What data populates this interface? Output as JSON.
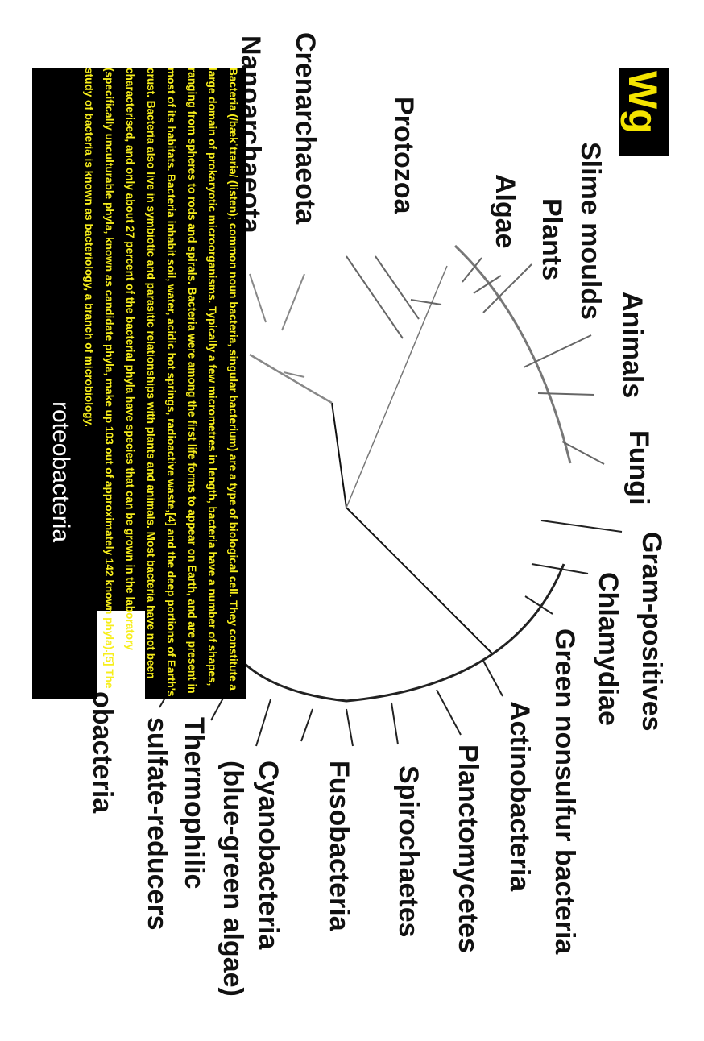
{
  "logo": {
    "text": "Wg"
  },
  "taxa": {
    "slime_moulds": "Slime moulds",
    "plants": "Plants",
    "algae": "Algae",
    "animals": "Animals",
    "fungi": "Fungi",
    "protozoa": "Protozoa",
    "crenarchaeota": "Crenarchaeota",
    "nanoarchaeota": "Nanoarchaeota",
    "gram_positives": "Gram-positives",
    "chlamydiae": "Chlamydiae",
    "green_nonsulfur": "Green nonsulfur bacteria",
    "actinobacteria": "Actinobacteria",
    "planctomycetes": "Planctomycetes",
    "spirochaetes": "Spirochaetes",
    "fusobacteria": "Fusobacteria",
    "cyanobacteria": "Cyanobacteria",
    "blue_green": "(blue-green algae)",
    "thermophilic": "Thermophilic",
    "sulfate_reducers": "sulfate-reducers",
    "proteobacteria_tail": "obacteria"
  },
  "overlay": {
    "paragraph": "Bacteria (/bækˈtɪəriə/ (listen); common noun bacteria, singular bacterium) are a type of biological cell. They constitute a large domain of prokaryotic microorganisms. Typically a few micrometres in length, bacteria have a number of shapes, ranging from spheres to rods and spirals. Bacteria were among the first life forms to appear on Earth, and are present in most of its habitats. Bacteria inhabit soil, water, acidic hot springs, radioactive waste,[4] and the deep portions of Earth's crust. Bacteria also live in symbiotic and parasitic relationships with plants and animals. Most bacteria have not been characterised, and only about 27 percent of the bacterial phyla have species that can be grown in the laboratory (specifically unculturable phyla, known as candidate phyla, make up 103 out of approximately 142 known phyla).[5] The study of bacteria is known as bacteriology, a branch of microbiology.",
    "fragment": "roteobacteria"
  },
  "colors": {
    "overlay_bg": "#000000",
    "overlay_text": "#f7ee1c",
    "logo_text": "#f4e400",
    "branch_dark": "#111111",
    "branch_gray": "#888888"
  }
}
